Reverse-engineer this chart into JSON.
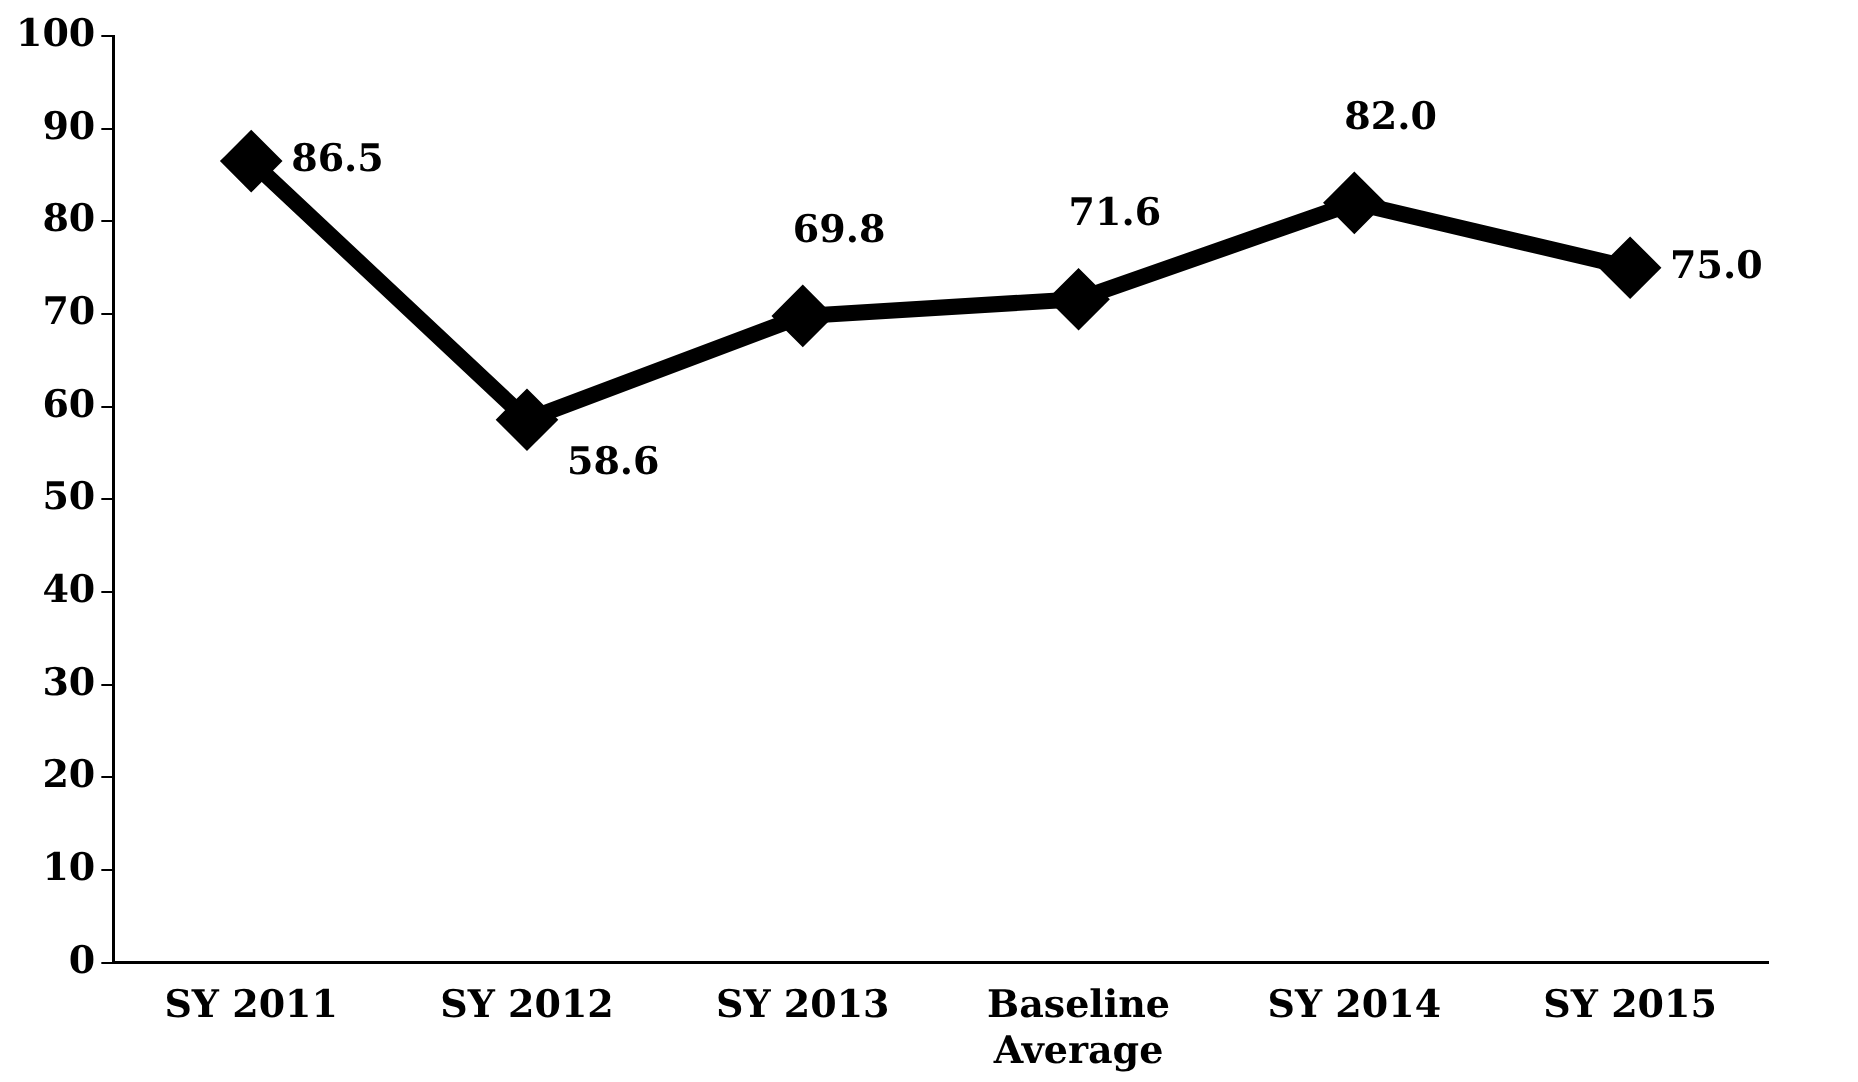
{
  "chart_data": {
    "type": "line",
    "categories": [
      "SY 2011",
      "SY 2012",
      "SY 2013",
      "Baseline Average",
      "SY 2014",
      "SY 2015"
    ],
    "series": [
      {
        "color": "#000000",
        "values": [
          86.5,
          58.6,
          69.8,
          71.6,
          82.0,
          75.0
        ],
        "value_labels": [
          "86.5",
          "58.6",
          "69.8",
          "71.6",
          "82.0",
          "75.0"
        ]
      }
    ],
    "ylim": [
      0,
      100
    ],
    "yticks": [
      0,
      10,
      20,
      30,
      40,
      50,
      60,
      70,
      80,
      90,
      100
    ],
    "grid": false,
    "legend": false,
    "marker": "diamond",
    "line_style": "solid"
  }
}
